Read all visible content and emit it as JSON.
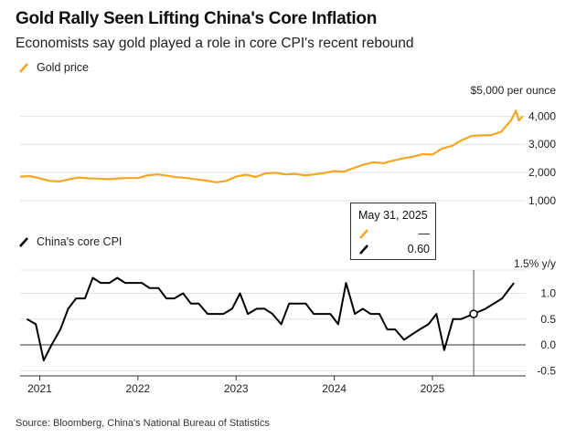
{
  "title": "Gold Rally Seen Lifting China's Core Inflation",
  "subtitle": "Economists say gold played a role in core CPI's recent rebound",
  "source": "Source: Bloomberg, China's National Bureau of Statistics",
  "colors": {
    "gold": "#f5a623",
    "cpi": "#000000",
    "grid": "#e2e2e2"
  },
  "tooltip": {
    "date": "May 31, 2025",
    "gold_value": "—",
    "cpi_value": "0.60"
  },
  "chart_data": [
    {
      "type": "line",
      "title": "Gold price",
      "legend": "Gold price",
      "ylabel": "$5,000 per ounce",
      "ylim": [
        800,
        4500
      ],
      "yticks": [
        1000,
        2000,
        3000,
        4000
      ],
      "ytick_labels": [
        "1,000",
        "2,000",
        "3,000",
        "4,000"
      ],
      "xlim": [
        2020.8,
        2025.95
      ],
      "x": [
        2020.8,
        2020.9,
        2021.0,
        2021.1,
        2021.2,
        2021.3,
        2021.4,
        2021.5,
        2021.6,
        2021.7,
        2021.8,
        2021.9,
        2022.0,
        2022.1,
        2022.2,
        2022.3,
        2022.4,
        2022.5,
        2022.6,
        2022.7,
        2022.8,
        2022.9,
        2023.0,
        2023.1,
        2023.2,
        2023.3,
        2023.4,
        2023.5,
        2023.6,
        2023.7,
        2023.8,
        2023.9,
        2024.0,
        2024.1,
        2024.2,
        2024.3,
        2024.4,
        2024.5,
        2024.6,
        2024.7,
        2024.8,
        2024.9,
        2025.0,
        2025.1,
        2025.2,
        2025.3,
        2025.4,
        2025.5,
        2025.6,
        2025.7,
        2025.75,
        2025.8,
        2025.85,
        2025.88,
        2025.92
      ],
      "y": [
        1850,
        1870,
        1790,
        1700,
        1680,
        1760,
        1820,
        1790,
        1780,
        1760,
        1790,
        1800,
        1800,
        1900,
        1930,
        1880,
        1830,
        1800,
        1750,
        1710,
        1650,
        1700,
        1850,
        1920,
        1840,
        1970,
        1990,
        1930,
        1950,
        1900,
        1930,
        1980,
        2050,
        2030,
        2160,
        2280,
        2360,
        2330,
        2420,
        2500,
        2560,
        2650,
        2640,
        2850,
        2950,
        3150,
        3300,
        3320,
        3330,
        3450,
        3650,
        3850,
        4200,
        3850,
        4000
      ]
    },
    {
      "type": "line",
      "title": "China's core CPI",
      "legend": "China's core CPI",
      "ylabel": "1.5% y/y",
      "ylim": [
        -0.6,
        1.45
      ],
      "yticks": [
        -0.5,
        0.0,
        0.5,
        1.0
      ],
      "ytick_labels": [
        "-0.5",
        "0.0",
        "0.5",
        "1.0"
      ],
      "xlim": [
        2020.8,
        2025.95
      ],
      "xticks": [
        2021,
        2022,
        2023,
        2024,
        2025
      ],
      "xtick_labels": [
        "2021",
        "2022",
        "2023",
        "2024",
        "2025"
      ],
      "highlight": {
        "x": 2025.42,
        "y": 0.6
      },
      "x": [
        2020.87,
        2020.96,
        2021.04,
        2021.12,
        2021.21,
        2021.29,
        2021.37,
        2021.46,
        2021.54,
        2021.62,
        2021.71,
        2021.79,
        2021.87,
        2021.96,
        2022.04,
        2022.12,
        2022.21,
        2022.29,
        2022.37,
        2022.46,
        2022.54,
        2022.62,
        2022.71,
        2022.79,
        2022.87,
        2022.96,
        2023.04,
        2023.12,
        2023.21,
        2023.29,
        2023.37,
        2023.46,
        2023.54,
        2023.62,
        2023.71,
        2023.79,
        2023.87,
        2023.96,
        2024.04,
        2024.12,
        2024.21,
        2024.29,
        2024.37,
        2024.46,
        2024.54,
        2024.62,
        2024.71,
        2024.79,
        2024.87,
        2024.96,
        2025.04,
        2025.12,
        2025.21,
        2025.29,
        2025.42,
        2025.54,
        2025.71,
        2025.83
      ],
      "y": [
        0.5,
        0.4,
        -0.3,
        0.0,
        0.3,
        0.7,
        0.9,
        0.9,
        1.3,
        1.2,
        1.2,
        1.3,
        1.2,
        1.2,
        1.2,
        1.1,
        1.1,
        0.9,
        0.9,
        1.0,
        0.8,
        0.8,
        0.6,
        0.6,
        0.6,
        0.7,
        1.0,
        0.6,
        0.7,
        0.7,
        0.6,
        0.4,
        0.8,
        0.8,
        0.8,
        0.6,
        0.6,
        0.6,
        0.4,
        1.2,
        0.6,
        0.7,
        0.6,
        0.6,
        0.3,
        0.3,
        0.1,
        0.2,
        0.3,
        0.4,
        0.6,
        -0.1,
        0.5,
        0.5,
        0.6,
        0.7,
        0.9,
        1.2
      ]
    }
  ]
}
